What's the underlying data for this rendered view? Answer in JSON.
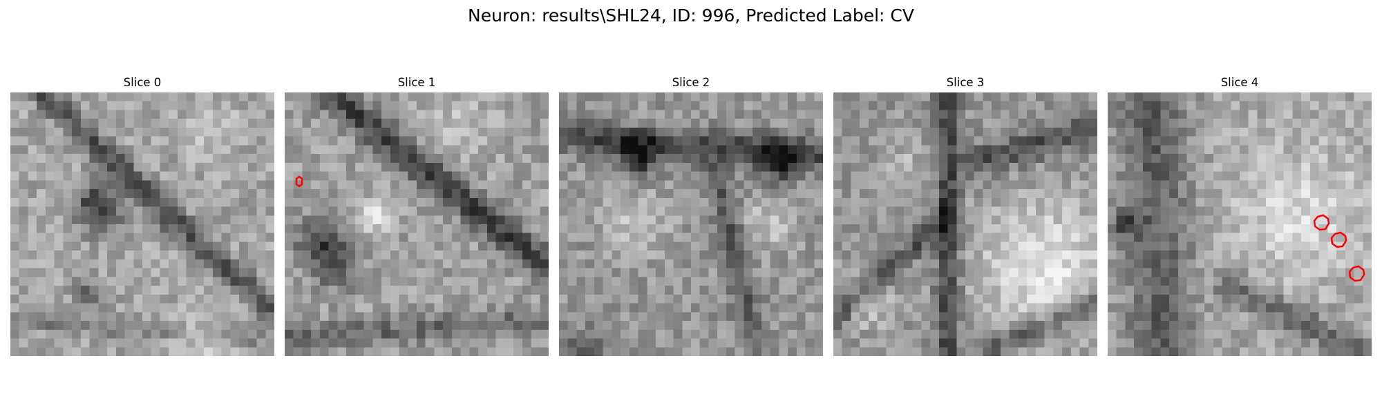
{
  "figure": {
    "suptitle": "Neuron: results\\SHL24, ID: 996, Predicted Label: CV"
  },
  "panels": [
    {
      "title": "Slice 0"
    },
    {
      "title": "Slice 1"
    },
    {
      "title": "Slice 2"
    },
    {
      "title": "Slice 3"
    },
    {
      "title": "Slice 4"
    }
  ],
  "colors": {
    "marker": "#ff0000",
    "background": "#ffffff",
    "colormap": "gray"
  }
}
